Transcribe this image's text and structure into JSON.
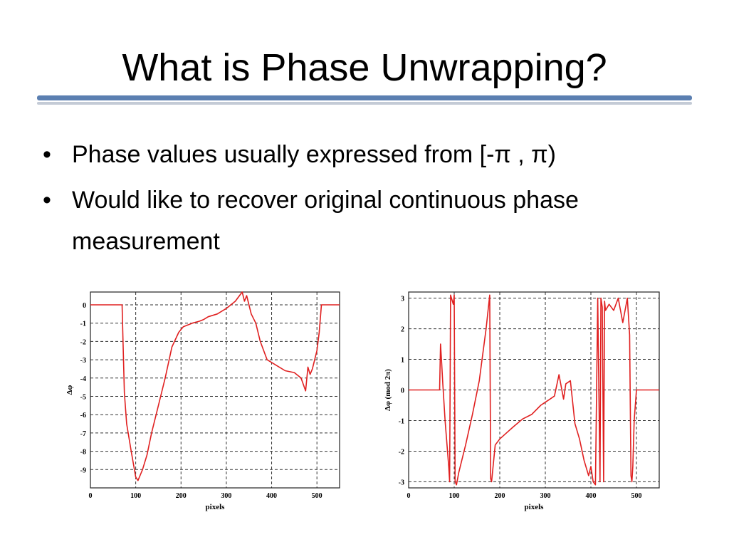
{
  "slide": {
    "title": "What is Phase Unwrapping?",
    "bullets": [
      "Phase values usually expressed from [-π , π)",
      "Would like to recover original continuous phase measurement"
    ],
    "bullet_glyph": "•",
    "rule_colors": [
      "#5b7fb1",
      "#c4cbd6"
    ]
  },
  "chart_data": [
    {
      "type": "line",
      "xlabel": "pixels",
      "ylabel": "Δφ",
      "xlim": [
        0,
        550
      ],
      "ylim": [
        -10,
        0.7
      ],
      "xticks": [
        0,
        100,
        200,
        300,
        400,
        500
      ],
      "yticks": [
        0,
        -1,
        -2,
        -3,
        -4,
        -5,
        -6,
        -7,
        -8,
        -9
      ],
      "grid": "dashed",
      "line_color": "#e02020",
      "series": [
        {
          "x": [
            0,
            70,
            72,
            75,
            80,
            90,
            100,
            105,
            110,
            115,
            125,
            135,
            150,
            165,
            180,
            195,
            205,
            215,
            225,
            240,
            250,
            260,
            280,
            300,
            320,
            335,
            340,
            345,
            350,
            355,
            365,
            375,
            390,
            410,
            430,
            450,
            465,
            475,
            480,
            485,
            490,
            495,
            500,
            505,
            510,
            550
          ],
          "y": [
            0,
            0,
            -2,
            -4.8,
            -6.5,
            -8.0,
            -9.4,
            -9.6,
            -9.3,
            -9.0,
            -8.2,
            -7.0,
            -5.5,
            -4.0,
            -2.3,
            -1.5,
            -1.2,
            -1.1,
            -1.0,
            -0.9,
            -0.8,
            -0.65,
            -0.5,
            -0.2,
            0.2,
            0.7,
            0.2,
            0.5,
            0,
            -0.5,
            -1.0,
            -2.0,
            -3.0,
            -3.3,
            -3.6,
            -3.7,
            -4.0,
            -4.7,
            -3.4,
            -3.8,
            -3.5,
            -3.0,
            -2.5,
            -1.5,
            0,
            0
          ]
        }
      ]
    },
    {
      "type": "line",
      "xlabel": "pixels",
      "ylabel": "Δφ (mod 2π)",
      "xlim": [
        0,
        550
      ],
      "ylim": [
        -3.2,
        3.2
      ],
      "xticks": [
        0,
        100,
        200,
        300,
        400,
        500
      ],
      "yticks": [
        3,
        2,
        1,
        0,
        -1,
        -2,
        -3
      ],
      "grid": "dashed",
      "line_color": "#e02020",
      "series": [
        {
          "x": [
            0,
            68,
            70,
            72,
            75,
            80,
            88,
            90,
            92,
            98,
            100,
            102,
            105,
            110,
            115,
            125,
            140,
            155,
            170,
            178,
            180,
            182,
            190,
            200,
            215,
            230,
            250,
            270,
            290,
            310,
            320,
            330,
            340,
            345,
            355,
            365,
            375,
            385,
            395,
            400,
            405,
            410,
            415,
            420,
            422,
            425,
            428,
            430,
            432,
            440,
            450,
            460,
            470,
            480,
            485,
            488,
            490,
            492,
            495,
            500,
            510,
            550
          ],
          "y": [
            0,
            0,
            1.5,
            1.0,
            0.2,
            -1.0,
            -2.5,
            -3.0,
            3.1,
            2.8,
            3.1,
            -3.0,
            -3.1,
            -2.7,
            -2.4,
            -1.8,
            -0.8,
            0.3,
            2.0,
            3.1,
            -2.9,
            -3.0,
            -1.8,
            -1.6,
            -1.4,
            -1.2,
            -0.95,
            -0.8,
            -0.5,
            -0.3,
            -0.2,
            0.5,
            -0.3,
            0.2,
            0.3,
            -1.1,
            -1.6,
            -2.3,
            -2.8,
            -2.5,
            -3.0,
            -3.1,
            3.0,
            -3.0,
            3.0,
            2.7,
            -3.0,
            2.9,
            2.6,
            2.8,
            2.6,
            3.0,
            2.2,
            3.0,
            1.8,
            -2.8,
            -3.0,
            -2.5,
            -1.0,
            0,
            0,
            0
          ]
        }
      ]
    }
  ]
}
